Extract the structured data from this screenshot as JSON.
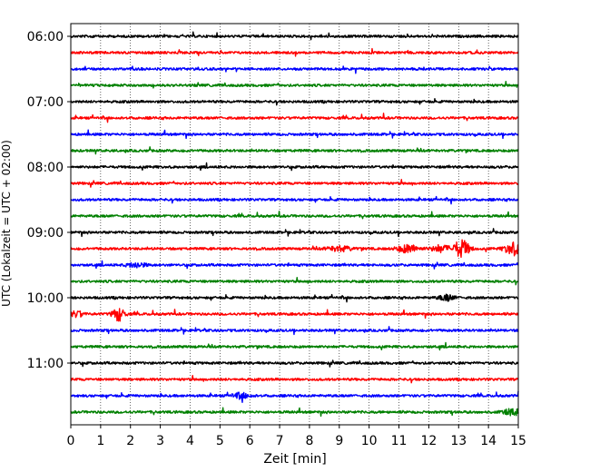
{
  "chart_data": {
    "type": "line",
    "title": "",
    "xlabel": "Zeit  [min]",
    "ylabel": "UTC (Lokalzeit = UTC + 02:00)",
    "xlim": [
      0,
      15
    ],
    "x_ticks": [
      0,
      1,
      2,
      3,
      4,
      5,
      6,
      7,
      8,
      9,
      10,
      11,
      12,
      13,
      14,
      15
    ],
    "x_grid": "dotted vertical lines at each minute",
    "y_ticks": [
      "06:00",
      "07:00",
      "08:00",
      "09:00",
      "10:00",
      "11:00"
    ],
    "y_tick_traces": [
      0,
      4,
      8,
      12,
      16,
      20
    ],
    "trace_interval_minutes": 15,
    "start_time": "06:00",
    "colors": [
      "#000000",
      "#ff0000",
      "#0000ff",
      "#008000"
    ],
    "traces": [
      {
        "time": "06:00",
        "color": "#000000",
        "events": []
      },
      {
        "time": "06:15",
        "color": "#ff0000",
        "events": []
      },
      {
        "time": "06:30",
        "color": "#0000ff",
        "events": []
      },
      {
        "time": "06:45",
        "color": "#008000",
        "events": []
      },
      {
        "time": "07:00",
        "color": "#000000",
        "events": []
      },
      {
        "time": "07:15",
        "color": "#ff0000",
        "events": []
      },
      {
        "time": "07:30",
        "color": "#0000ff",
        "events": []
      },
      {
        "time": "07:45",
        "color": "#008000",
        "events": []
      },
      {
        "time": "08:00",
        "color": "#000000",
        "events": []
      },
      {
        "time": "08:15",
        "color": "#ff0000",
        "events": []
      },
      {
        "time": "08:30",
        "color": "#0000ff",
        "events": []
      },
      {
        "time": "08:45",
        "color": "#008000",
        "events": []
      },
      {
        "time": "09:00",
        "color": "#000000",
        "events": []
      },
      {
        "time": "09:15",
        "color": "#ff0000",
        "events": [
          {
            "t": 13.1,
            "amp": 3.0,
            "width": 0.25
          },
          {
            "t": 14.8,
            "amp": 2.2,
            "width": 0.25
          },
          {
            "t": 11.3,
            "amp": 1.3,
            "width": 0.35
          },
          {
            "t": 12.4,
            "amp": 1.1,
            "width": 0.3
          },
          {
            "t": 9.0,
            "amp": 0.8,
            "width": 0.4
          }
        ]
      },
      {
        "time": "09:30",
        "color": "#0000ff",
        "events": [
          {
            "t": 2.2,
            "amp": 0.8,
            "width": 0.3
          }
        ]
      },
      {
        "time": "09:45",
        "color": "#008000",
        "events": []
      },
      {
        "time": "10:00",
        "color": "#000000",
        "events": [
          {
            "t": 12.6,
            "amp": 1.0,
            "width": 0.25
          }
        ]
      },
      {
        "time": "10:15",
        "color": "#ff0000",
        "events": [
          {
            "t": 1.6,
            "amp": 2.2,
            "width": 0.2
          },
          {
            "t": 0.2,
            "amp": 1.0,
            "width": 0.2
          }
        ]
      },
      {
        "time": "10:30",
        "color": "#0000ff",
        "events": []
      },
      {
        "time": "10:45",
        "color": "#008000",
        "events": []
      },
      {
        "time": "11:00",
        "color": "#000000",
        "events": []
      },
      {
        "time": "11:15",
        "color": "#ff0000",
        "events": []
      },
      {
        "time": "11:30",
        "color": "#0000ff",
        "events": [
          {
            "t": 5.7,
            "amp": 0.9,
            "width": 0.3
          }
        ]
      },
      {
        "time": "11:45",
        "color": "#008000",
        "events": [
          {
            "t": 14.8,
            "amp": 1.0,
            "width": 0.3
          }
        ]
      }
    ]
  }
}
